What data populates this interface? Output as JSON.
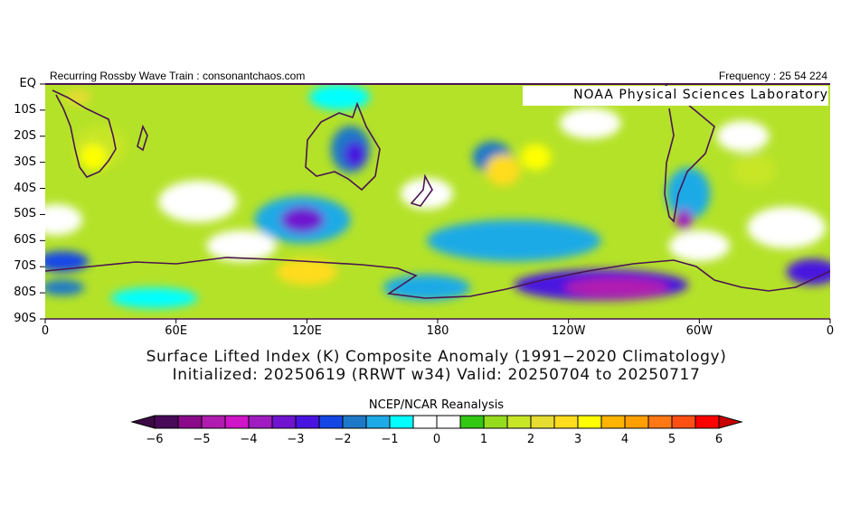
{
  "header": {
    "left": "Recurring Rossby Wave Train : consonantchaos.com",
    "right": "Frequency : 25 54 224"
  },
  "map": {
    "credit": "NOAA Physical Sciences Laboratory",
    "lat_labels": [
      "EQ",
      "10S",
      "20S",
      "30S",
      "40S",
      "50S",
      "60S",
      "70S",
      "80S",
      "90S"
    ],
    "lon_labels": [
      "0",
      "60E",
      "120E",
      "180",
      "120W",
      "60W",
      "0"
    ],
    "anomaly_features": [
      {
        "lon": 70,
        "lat": -45,
        "rx": 18,
        "ry": 8,
        "value": 0
      },
      {
        "lon": 175,
        "lat": -42,
        "rx": 12,
        "ry": 6,
        "value": 0
      },
      {
        "lon": 300,
        "lat": -62,
        "rx": 14,
        "ry": 6,
        "value": 0
      },
      {
        "lon": 5,
        "lat": -52,
        "rx": 12,
        "ry": 6,
        "value": 0
      },
      {
        "lon": 250,
        "lat": -15,
        "rx": 14,
        "ry": 6,
        "value": 0
      },
      {
        "lon": 320,
        "lat": -20,
        "rx": 12,
        "ry": 6,
        "value": 0
      },
      {
        "lon": 340,
        "lat": -55,
        "rx": 18,
        "ry": 8,
        "value": 0
      },
      {
        "lon": 90,
        "lat": -62,
        "rx": 16,
        "ry": 6,
        "value": 0
      },
      {
        "lon": 25,
        "lat": -24,
        "rx": 12,
        "ry": 8,
        "value": 1.8
      },
      {
        "lon": 22,
        "lat": -28,
        "rx": 6,
        "ry": 5,
        "value": 3
      },
      {
        "lon": 135,
        "lat": -5,
        "rx": 14,
        "ry": 5,
        "value": -1
      },
      {
        "lon": 140,
        "lat": -25,
        "rx": 9,
        "ry": 9,
        "value": -1.8
      },
      {
        "lon": 142,
        "lat": -27,
        "rx": 5,
        "ry": 5,
        "value": -3
      },
      {
        "lon": 118,
        "lat": -52,
        "rx": 22,
        "ry": 9,
        "value": -1.5
      },
      {
        "lon": 118,
        "lat": -52,
        "rx": 10,
        "ry": 5,
        "value": -3.3
      },
      {
        "lon": 215,
        "lat": -60,
        "rx": 40,
        "ry": 8,
        "value": -1.5
      },
      {
        "lon": 255,
        "lat": -77,
        "rx": 40,
        "ry": 6,
        "value": -2.8
      },
      {
        "lon": 262,
        "lat": -78,
        "rx": 24,
        "ry": 4,
        "value": -4.8
      },
      {
        "lon": 205,
        "lat": -28,
        "rx": 9,
        "ry": 6,
        "value": -2
      },
      {
        "lon": 210,
        "lat": -33,
        "rx": 8,
        "ry": 6,
        "value": 2.8
      },
      {
        "lon": 225,
        "lat": -28,
        "rx": 7,
        "ry": 5,
        "value": 3.3
      },
      {
        "lon": 8,
        "lat": -68,
        "rx": 12,
        "ry": 4,
        "value": -2.5
      },
      {
        "lon": 8,
        "lat": -78,
        "rx": 10,
        "ry": 3,
        "value": -2
      },
      {
        "lon": 352,
        "lat": -72,
        "rx": 12,
        "ry": 5,
        "value": -3
      },
      {
        "lon": 120,
        "lat": -72,
        "rx": 14,
        "ry": 5,
        "value": 2.5
      },
      {
        "lon": 295,
        "lat": -42,
        "rx": 10,
        "ry": 10,
        "value": -1.5
      },
      {
        "lon": 293,
        "lat": -52,
        "rx": 4,
        "ry": 4,
        "value": -4
      },
      {
        "lon": 325,
        "lat": -33,
        "rx": 10,
        "ry": 6,
        "value": 1.8
      },
      {
        "lon": 50,
        "lat": -82,
        "rx": 20,
        "ry": 4,
        "value": -1
      },
      {
        "lon": 175,
        "lat": -78,
        "rx": 20,
        "ry": 5,
        "value": -1.5
      },
      {
        "lon": 15,
        "lat": -5,
        "rx": 6,
        "ry": 3,
        "value": 2
      }
    ]
  },
  "title": {
    "line1": "Surface Lifted Index (K) Composite Anomaly (1991−2020 Climatology)",
    "line2": "Initialized: 20250619 (RRWT w34) Valid: 20250704 to 20250717"
  },
  "legend": {
    "label": "NCEP/NCAR Reanalysis",
    "ticks": [
      "−6",
      "−5",
      "−4",
      "−3",
      "−2",
      "−1",
      "0",
      "1",
      "2",
      "3",
      "4",
      "5",
      "6"
    ],
    "colors": [
      "#4a0a5a",
      "#8a0a8a",
      "#b01cb0",
      "#d014c8",
      "#a01cc0",
      "#7014d0",
      "#4a14e0",
      "#1446e6",
      "#1e78c8",
      "#1eaae6",
      "#00ffff",
      "#ffffff",
      "#ffffff",
      "#32c814",
      "#96dc1e",
      "#c8e628",
      "#e6dc32",
      "#ffdc1e",
      "#ffff00",
      "#ffb400",
      "#ffa000",
      "#ff7814",
      "#ff5014",
      "#ff0000"
    ],
    "under_color": "#3c0a46",
    "over_color": "#c80000"
  }
}
